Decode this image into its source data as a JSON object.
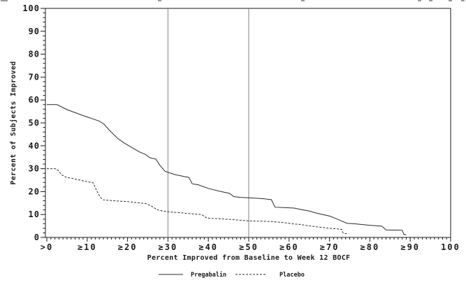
{
  "chart_data": {
    "type": "line",
    "title": "",
    "xlabel": "Percent Improved from Baseline to Week 12 BOCF",
    "ylabel": "Percent of Subjects Improved",
    "xlim": [
      0,
      100
    ],
    "ylim": [
      0,
      100
    ],
    "grid": false,
    "framed": true,
    "legend_position": "bottom",
    "x_axis": {
      "tick_values": [
        0,
        10,
        20,
        30,
        40,
        50,
        60,
        70,
        80,
        90,
        100
      ],
      "tick_labels": [
        ">0",
        "≥10",
        "≥20",
        "≥30",
        "≥40",
        "≥50",
        "≥60",
        "≥70",
        "≥80",
        "≥90",
        "100"
      ],
      "minor_tick_step": 1
    },
    "y_axis": {
      "tick_values": [
        0,
        10,
        20,
        30,
        40,
        50,
        60,
        70,
        80,
        90,
        100
      ],
      "tick_labels": [
        "0",
        "10",
        "20",
        "30",
        "40",
        "50",
        "60",
        "70",
        "80",
        "90",
        "100"
      ],
      "minor_tick_step": 2
    },
    "reference_lines_x": [
      30,
      50
    ],
    "series": [
      {
        "name": "Pregabalin",
        "style": "solid",
        "color": "#2a2a2a",
        "points": [
          [
            0,
            58
          ],
          [
            2.5,
            58
          ],
          [
            5,
            55.8
          ],
          [
            9,
            53.2
          ],
          [
            13,
            50.8
          ],
          [
            14.2,
            49.4
          ],
          [
            15.5,
            46.8
          ],
          [
            17.5,
            43.3
          ],
          [
            19,
            41.4
          ],
          [
            21,
            39.3
          ],
          [
            23,
            37.3
          ],
          [
            24.5,
            36.2
          ],
          [
            25.5,
            34.8
          ],
          [
            27,
            34.2
          ],
          [
            28,
            31.5
          ],
          [
            29.3,
            28.8
          ],
          [
            31.8,
            27.4
          ],
          [
            34.3,
            26.5
          ],
          [
            35.2,
            26.2
          ],
          [
            36,
            23.4
          ],
          [
            37.5,
            23
          ],
          [
            40,
            21.4
          ],
          [
            43,
            20.1
          ],
          [
            45.3,
            19.2
          ],
          [
            46.3,
            17.8
          ],
          [
            48,
            17.5
          ],
          [
            50,
            17.3
          ],
          [
            53,
            17
          ],
          [
            55.6,
            16.5
          ],
          [
            56.5,
            13.2
          ],
          [
            59,
            13
          ],
          [
            61.3,
            12.8
          ],
          [
            63.1,
            12.1
          ],
          [
            65,
            11.5
          ],
          [
            66.6,
            10.7
          ],
          [
            68.5,
            9.9
          ],
          [
            70.1,
            9.3
          ],
          [
            71.5,
            8.3
          ],
          [
            73,
            7.2
          ],
          [
            74.3,
            6.2
          ],
          [
            76.5,
            5.9
          ],
          [
            80,
            5.3
          ],
          [
            83,
            4.9
          ],
          [
            84,
            3.3
          ],
          [
            86,
            3.2
          ],
          [
            88,
            3.1
          ],
          [
            88.4,
            1.4
          ],
          [
            89,
            1.1
          ]
        ]
      },
      {
        "name": "Placebo",
        "style": "dashed",
        "color": "#2a2a2a",
        "points": [
          [
            0,
            30
          ],
          [
            2.1,
            30
          ],
          [
            2.8,
            29.3
          ],
          [
            3.6,
            27.4
          ],
          [
            4.6,
            26.4
          ],
          [
            7,
            25.5
          ],
          [
            9.5,
            24.5
          ],
          [
            11.5,
            23.8
          ],
          [
            12.2,
            21
          ],
          [
            13.2,
            17.6
          ],
          [
            14,
            16.4
          ],
          [
            16,
            16.1
          ],
          [
            20,
            15.6
          ],
          [
            23,
            15.1
          ],
          [
            24.6,
            14.7
          ],
          [
            26,
            13.6
          ],
          [
            27.3,
            12.1
          ],
          [
            28.6,
            11.6
          ],
          [
            30,
            11.2
          ],
          [
            33,
            10.8
          ],
          [
            36,
            10.3
          ],
          [
            38.3,
            10
          ],
          [
            39.6,
            8.5
          ],
          [
            41,
            8.3
          ],
          [
            43,
            8.1
          ],
          [
            46,
            7.8
          ],
          [
            50,
            7.2
          ],
          [
            53,
            7.1
          ],
          [
            56,
            6.9
          ],
          [
            59,
            6.4
          ],
          [
            61,
            5.9
          ],
          [
            62.5,
            5.7
          ],
          [
            65.5,
            4.9
          ],
          [
            68.5,
            4.3
          ],
          [
            70.5,
            3.9
          ],
          [
            72,
            3.7
          ],
          [
            73,
            3.5
          ],
          [
            73.4,
            1.9
          ],
          [
            74.4,
            1.6
          ]
        ]
      }
    ]
  },
  "figure": {
    "colors": {
      "curve": "#2a2a2a",
      "frame": "#1a1a1a",
      "reference_line": "#808080",
      "background": "#ffffff"
    },
    "top_edge_fragments": [
      1,
      6,
      226,
      431,
      598,
      614,
      642,
      660
    ]
  }
}
